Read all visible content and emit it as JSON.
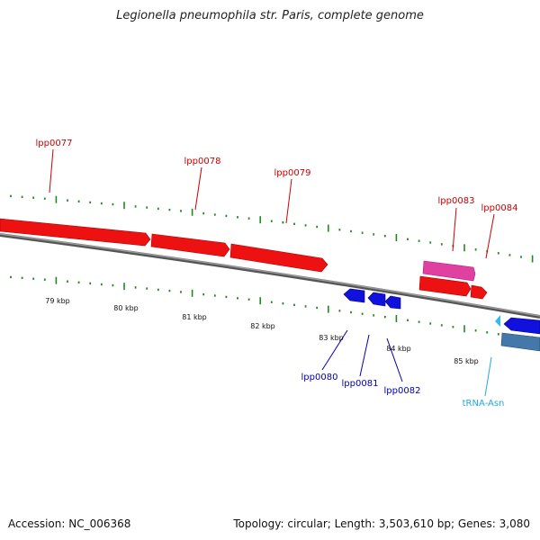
{
  "title": "Legionella pneumophila str. Paris, complete genome",
  "footer": {
    "accession": "Accession: NC_006368",
    "summary": "Topology: circular; Length: 3,503,610 bp; Genes: 3,080"
  },
  "kbp_ticks": [
    "79 kbp",
    "80 kbp",
    "81 kbp",
    "82 kbp",
    "83 kbp",
    "84 kbp",
    "85 kbp"
  ],
  "genes": {
    "forward_strand": [
      "lpp0077",
      "lpp0078",
      "lpp0079",
      "lpp0083",
      "lpp0084"
    ],
    "reverse_strand": [
      "lpp0080",
      "lpp0081",
      "lpp0082"
    ],
    "rna": [
      "tRNA-Asn"
    ]
  },
  "colors": {
    "forward_cds": "#ee1111",
    "reverse_cds": "#1111dd",
    "pink_feature": "#e040a0",
    "trna": "#33bbee",
    "forward_label": "#cc0000",
    "reverse_label": "#0000aa",
    "trna_label": "#22aadd",
    "backbone": "#777777",
    "tick": "#228822"
  }
}
